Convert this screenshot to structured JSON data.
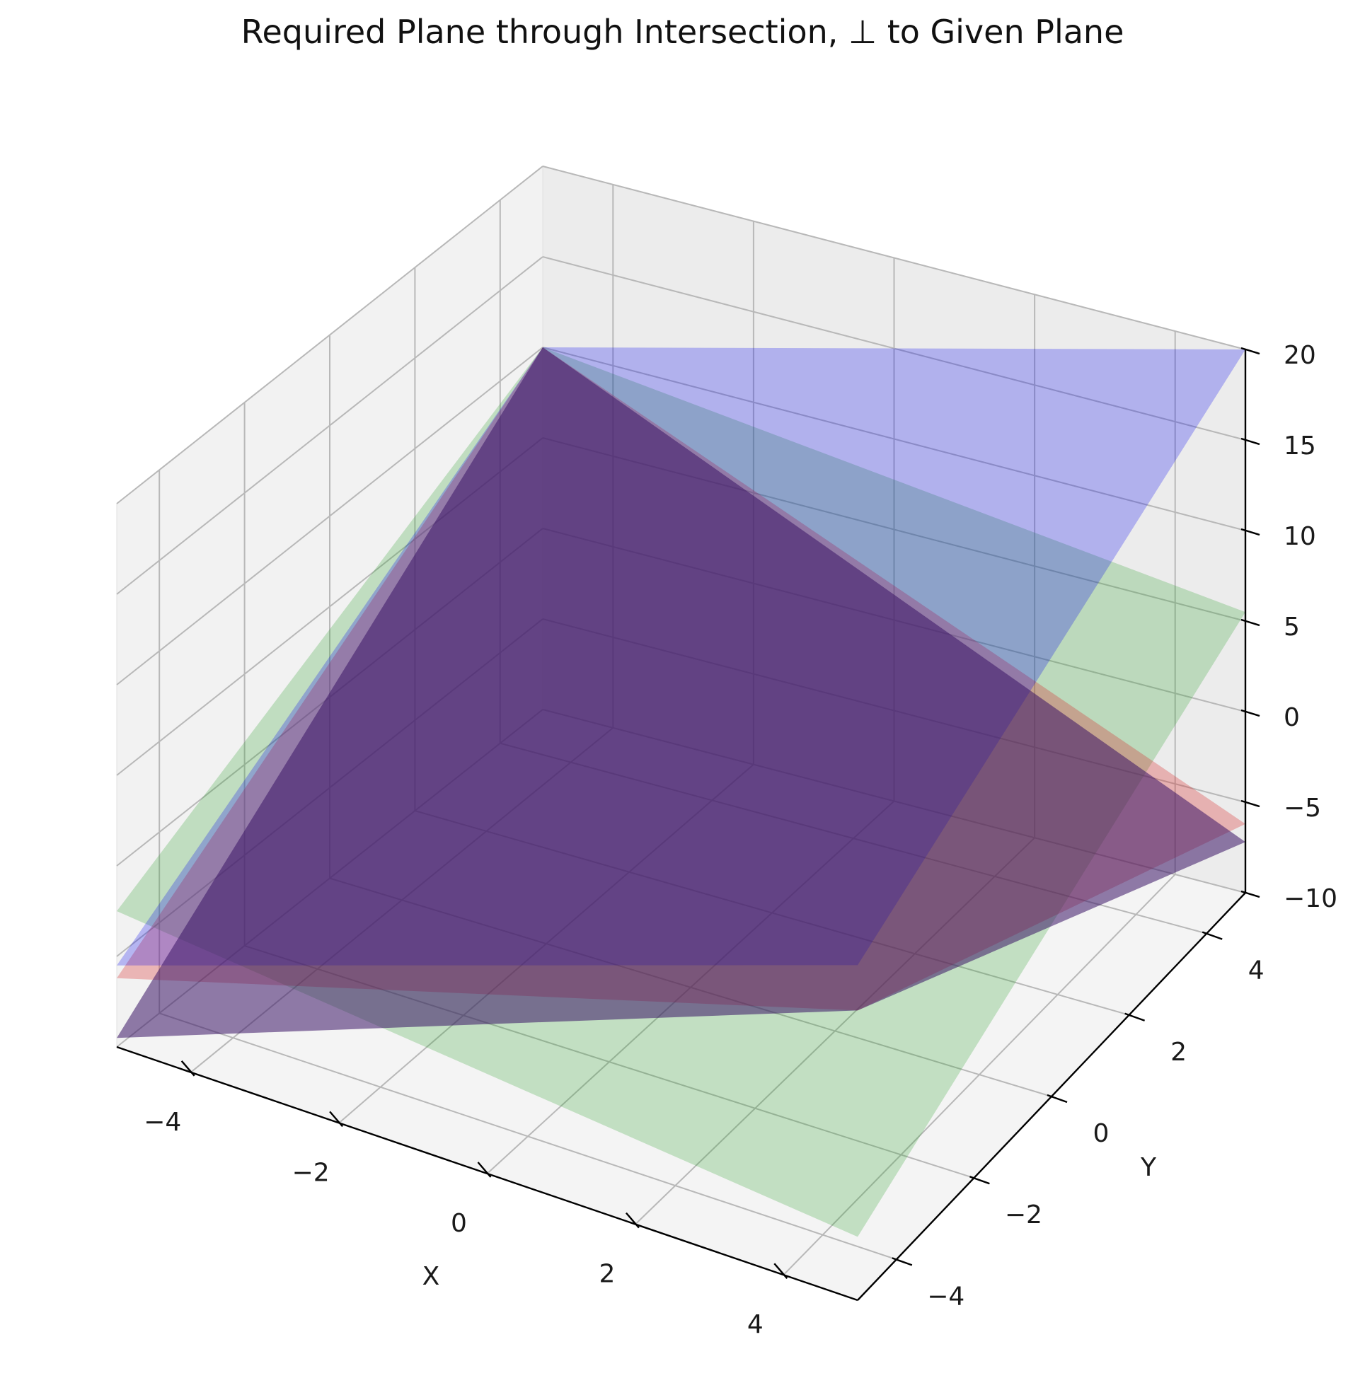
{
  "chart_data": {
    "type": "surface3d",
    "title": "Required Plane through Intersection, ⊥ to Given Plane",
    "xlabel": "X",
    "ylabel": "Y",
    "zlabel": "",
    "xlim": [
      -5,
      5
    ],
    "ylim": [
      -5,
      5
    ],
    "zlim": [
      -10,
      20
    ],
    "x_ticks": [
      -4,
      -2,
      0,
      2,
      4
    ],
    "y_ticks": [
      -4,
      -2,
      0,
      2,
      4
    ],
    "z_ticks": [
      -10,
      -5,
      0,
      5,
      10,
      15,
      20
    ],
    "x_tick_labels": [
      "−4",
      "−2",
      "0",
      "2",
      "4"
    ],
    "y_tick_labels": [
      "−4",
      "−2",
      "0",
      "2",
      "4"
    ],
    "z_tick_labels": [
      "−10",
      "−5",
      "0",
      "5",
      "10",
      "15",
      "20"
    ],
    "grid": true,
    "series": [
      {
        "color": "#2ca02c",
        "opacity": 0.25,
        "corners": [
          {
            "x": -5,
            "y": -5,
            "z": -2.5
          },
          {
            "x": 5,
            "y": -5,
            "z": -6.5
          },
          {
            "x": 5,
            "y": 5,
            "z": 5.5
          },
          {
            "x": -5,
            "y": 5,
            "z": 10.0
          }
        ]
      },
      {
        "color": "#d62728",
        "opacity": 0.3,
        "corners": [
          {
            "x": -5,
            "y": -5,
            "z": -6.2
          },
          {
            "x": 5,
            "y": -5,
            "z": 6.0
          },
          {
            "x": 5,
            "y": 5,
            "z": -6.2
          },
          {
            "x": -5,
            "y": 5,
            "z": 10.0
          }
        ]
      },
      {
        "color": "#0000ee",
        "opacity": 0.25,
        "corners": [
          {
            "x": -5,
            "y": -5,
            "z": -5.5
          },
          {
            "x": 5,
            "y": -5,
            "z": 8.5
          },
          {
            "x": 5,
            "y": 5,
            "z": 20.0
          },
          {
            "x": -5,
            "y": 5,
            "z": 10.0
          }
        ]
      },
      {
        "color": "#3b1466",
        "opacity": 0.55,
        "corners": [
          {
            "x": -5,
            "y": -5,
            "z": -9.5
          },
          {
            "x": 5,
            "y": -5,
            "z": 6.0
          },
          {
            "x": 5,
            "y": 5,
            "z": -7.2
          },
          {
            "x": -5,
            "y": 5,
            "z": 10.0
          }
        ]
      }
    ]
  }
}
